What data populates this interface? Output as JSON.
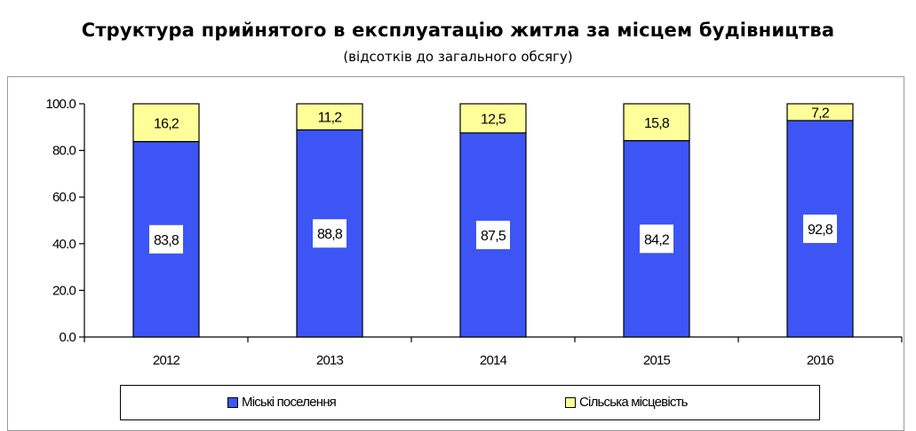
{
  "title": "Структура прийнятого в експлуатацію житла за місцем будівництва",
  "subtitle": "(відсотків до загального обсягу)",
  "colors": {
    "urban": "#3d55f5",
    "rural": "#ffff99",
    "axis": "#000000"
  },
  "chart_data": {
    "type": "bar",
    "stacked": true,
    "categories": [
      "2012",
      "2013",
      "2014",
      "2015",
      "2016"
    ],
    "series": [
      {
        "name": "Міські поселення",
        "values": [
          83.8,
          88.8,
          87.5,
          84.2,
          92.8
        ],
        "labels": [
          "83,8",
          "88,8",
          "87,5",
          "84,2",
          "92,8"
        ],
        "color": "#3d55f5"
      },
      {
        "name": "Сільська місцевість",
        "values": [
          16.2,
          11.2,
          12.5,
          15.8,
          7.2
        ],
        "labels": [
          "16,2",
          "11,2",
          "12,5",
          "15,8",
          "7,2"
        ],
        "color": "#ffff99"
      }
    ],
    "ylim": [
      0,
      100
    ],
    "yticks": [
      0,
      20,
      40,
      60,
      80,
      100
    ],
    "ytick_labels": [
      "0.0",
      "20.0",
      "40.0",
      "60.0",
      "80.0",
      "100.0"
    ],
    "grid": false,
    "legend": "bottom",
    "xlabel": "",
    "ylabel": ""
  }
}
